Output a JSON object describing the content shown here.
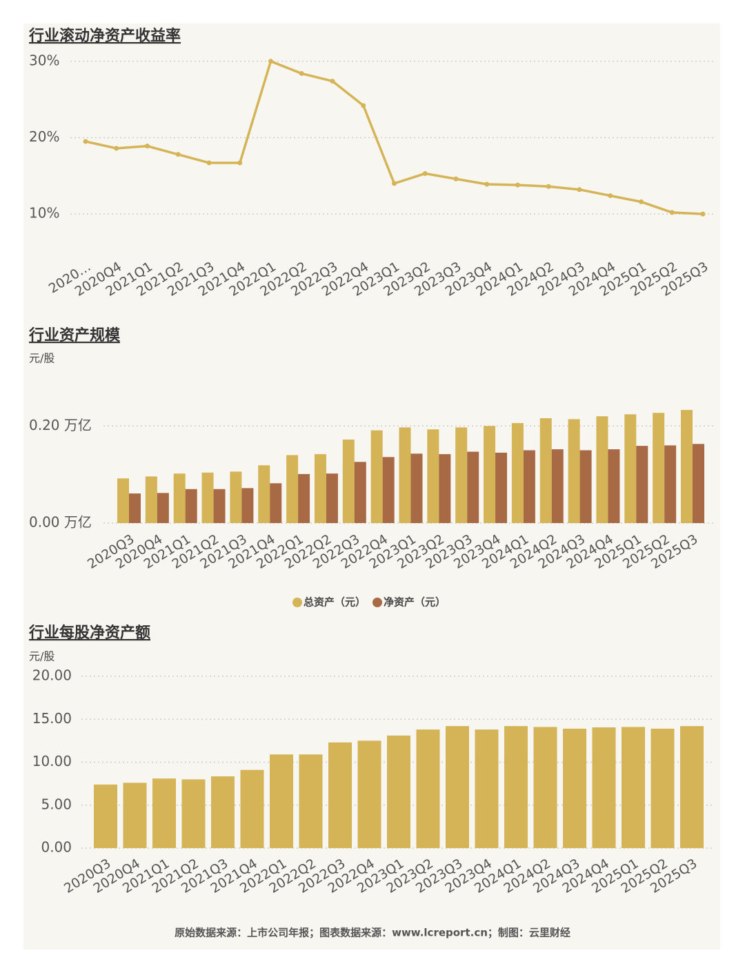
{
  "chart_data": [
    {
      "type": "line",
      "title": "行业滚动净资产收益率",
      "categories": [
        "2020…",
        "2020Q4",
        "2021Q1",
        "2021Q2",
        "2021Q3",
        "2021Q4",
        "2022Q1",
        "2022Q2",
        "2022Q3",
        "2022Q4",
        "2023Q1",
        "2023Q2",
        "2023Q3",
        "2023Q4",
        "2024Q1",
        "2024Q2",
        "2024Q3",
        "2024Q4",
        "2025Q1",
        "2025Q2",
        "2025Q3"
      ],
      "series": [
        {
          "color": "#d4b456",
          "values": [
            19.5,
            18.6,
            18.9,
            17.8,
            16.7,
            16.7,
            30.0,
            28.4,
            27.4,
            24.2,
            14.0,
            15.3,
            14.6,
            13.9,
            13.8,
            13.6,
            13.2,
            12.4,
            11.6,
            10.2,
            10.0
          ]
        }
      ],
      "ylim": [
        7.3,
        31.7
      ],
      "yticks": [
        {
          "value": 10,
          "label": "10%"
        },
        {
          "value": 20,
          "label": "20%"
        },
        {
          "value": 30,
          "label": "30%"
        }
      ],
      "grid": true
    },
    {
      "type": "bar",
      "title": "行业资产规模",
      "unit_label": "元/股",
      "categories": [
        "2020Q3",
        "2020Q4",
        "2021Q1",
        "2021Q2",
        "2021Q3",
        "2021Q4",
        "2022Q1",
        "2022Q2",
        "2022Q3",
        "2022Q4",
        "2023Q1",
        "2023Q2",
        "2023Q3",
        "2023Q4",
        "2024Q1",
        "2024Q2",
        "2024Q3",
        "2024Q4",
        "2025Q1",
        "2025Q2",
        "2025Q3"
      ],
      "series": [
        {
          "name": "总资产（元）",
          "color": "#d4b456",
          "values": [
            0.092,
            0.096,
            0.102,
            0.104,
            0.106,
            0.119,
            0.14,
            0.142,
            0.172,
            0.191,
            0.197,
            0.193,
            0.197,
            0.2,
            0.206,
            0.216,
            0.214,
            0.22,
            0.224,
            0.227,
            0.233
          ]
        },
        {
          "name": "净资产（元）",
          "color": "#a86a44",
          "values": [
            0.061,
            0.062,
            0.07,
            0.07,
            0.072,
            0.082,
            0.101,
            0.102,
            0.126,
            0.136,
            0.143,
            0.142,
            0.147,
            0.145,
            0.15,
            0.152,
            0.15,
            0.152,
            0.159,
            0.16,
            0.163
          ]
        }
      ],
      "ylim": [
        0,
        0.28
      ],
      "yticks": [
        {
          "value": 0,
          "label": "0.00 万亿"
        },
        {
          "value": 0.2,
          "label": "0.20 万亿"
        }
      ],
      "grid": true,
      "legend": "bottom"
    },
    {
      "type": "bar",
      "title": "行业每股净资产额",
      "unit_label": "元/股",
      "categories": [
        "2020Q3",
        "2020Q4",
        "2021Q1",
        "2021Q2",
        "2021Q3",
        "2021Q4",
        "2022Q1",
        "2022Q2",
        "2022Q3",
        "2022Q4",
        "2023Q1",
        "2023Q2",
        "2023Q3",
        "2023Q4",
        "2024Q1",
        "2024Q2",
        "2024Q3",
        "2024Q4",
        "2025Q1",
        "2025Q2",
        "2025Q3"
      ],
      "series": [
        {
          "color": "#d4b456",
          "values": [
            7.4,
            7.6,
            8.1,
            8.0,
            8.35,
            9.1,
            10.9,
            10.9,
            12.3,
            12.5,
            13.1,
            13.8,
            14.2,
            13.8,
            14.2,
            14.1,
            13.9,
            14.05,
            14.1,
            13.9,
            14.2
          ]
        }
      ],
      "ylim": [
        0,
        20
      ],
      "yticks": [
        {
          "value": 0,
          "label": "0.00"
        },
        {
          "value": 5,
          "label": "5.00"
        },
        {
          "value": 10,
          "label": "10.00"
        },
        {
          "value": 15,
          "label": "15.00"
        },
        {
          "value": 20,
          "label": "20.00"
        }
      ],
      "grid": true
    }
  ],
  "footer": "原始数据来源：上市公司年报；图表数据来源：www.lcreport.cn；制图：云里财经"
}
